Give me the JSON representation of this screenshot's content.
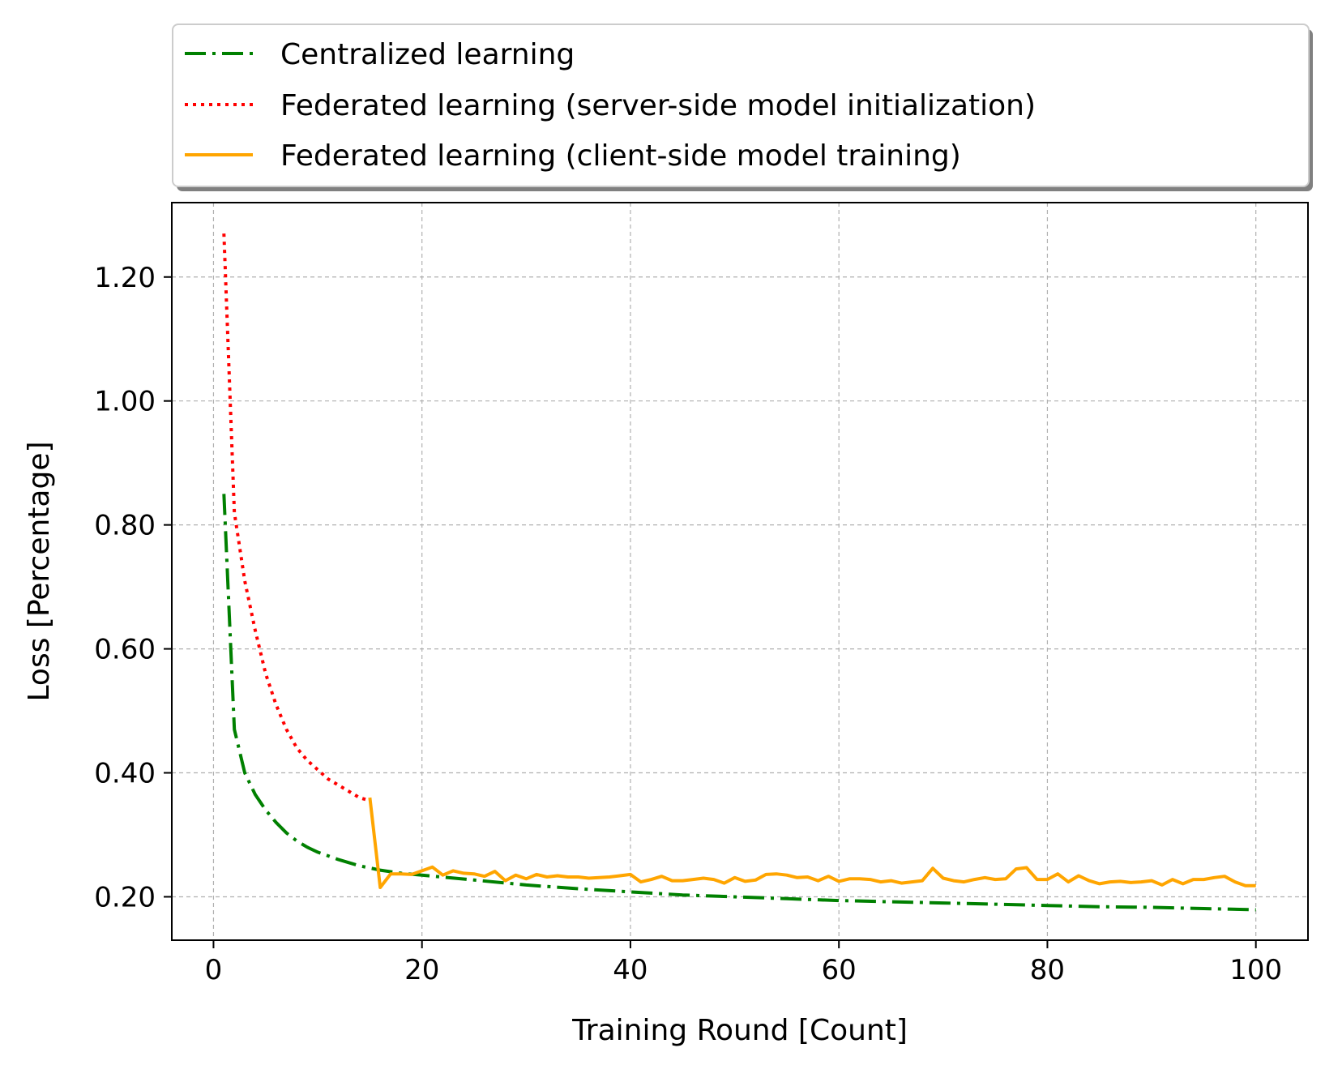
{
  "chart_data": {
    "type": "line",
    "xlabel": "Training Round [Count]",
    "ylabel": "Loss [Percentage]",
    "xlim": [
      -4,
      105
    ],
    "ylim": [
      0.13,
      1.32
    ],
    "xticks": [
      0,
      20,
      40,
      60,
      80,
      100
    ],
    "xtick_labels": [
      "0",
      "20",
      "40",
      "60",
      "80",
      "100"
    ],
    "yticks": [
      0.2,
      0.4,
      0.6,
      0.8,
      1.0,
      1.2
    ],
    "ytick_labels": [
      "0.20",
      "0.40",
      "0.60",
      "0.80",
      "1.00",
      "1.20"
    ],
    "grid": true,
    "legend_position": "top, outside above plot",
    "series": [
      {
        "name": "Centralized learning",
        "color": "#008000",
        "style": "dashdot",
        "x": [
          1,
          2,
          3,
          4,
          5,
          6,
          7,
          8,
          9,
          10,
          12,
          14,
          16,
          18,
          20,
          25,
          30,
          35,
          40,
          45,
          50,
          55,
          60,
          65,
          70,
          75,
          80,
          85,
          90,
          95,
          100
        ],
        "y": [
          0.85,
          0.47,
          0.4,
          0.365,
          0.34,
          0.32,
          0.303,
          0.29,
          0.28,
          0.272,
          0.26,
          0.25,
          0.243,
          0.238,
          0.235,
          0.227,
          0.219,
          0.213,
          0.208,
          0.203,
          0.2,
          0.197,
          0.194,
          0.192,
          0.19,
          0.188,
          0.186,
          0.184,
          0.183,
          0.181,
          0.179
        ]
      },
      {
        "name": "Federated learning (server-side model initialization)",
        "color": "#ff0000",
        "style": "dotted",
        "x": [
          1,
          2,
          3,
          4,
          5,
          6,
          7,
          8,
          9,
          10,
          11,
          12,
          13,
          14,
          15
        ],
        "y": [
          1.27,
          0.82,
          0.71,
          0.63,
          0.56,
          0.51,
          0.47,
          0.44,
          0.42,
          0.405,
          0.39,
          0.38,
          0.37,
          0.36,
          0.355
        ]
      },
      {
        "name": "Federated learning (client-side model training)",
        "color": "#ffa500",
        "style": "solid",
        "x": [
          15,
          16,
          17,
          18,
          19,
          20,
          21,
          22,
          23,
          24,
          25,
          26,
          27,
          28,
          29,
          30,
          31,
          32,
          33,
          34,
          35,
          36,
          37,
          38,
          39,
          40,
          41,
          42,
          43,
          44,
          45,
          46,
          47,
          48,
          49,
          50,
          51,
          52,
          53,
          54,
          55,
          56,
          57,
          58,
          59,
          60,
          61,
          62,
          63,
          64,
          65,
          66,
          67,
          68,
          69,
          70,
          71,
          72,
          73,
          74,
          75,
          76,
          77,
          78,
          79,
          80,
          81,
          82,
          83,
          84,
          85,
          86,
          87,
          88,
          89,
          90,
          91,
          92,
          93,
          94,
          95,
          96,
          97,
          98,
          99,
          100
        ],
        "y": [
          0.36,
          0.215,
          0.237,
          0.237,
          0.236,
          0.242,
          0.248,
          0.235,
          0.242,
          0.238,
          0.237,
          0.233,
          0.241,
          0.226,
          0.235,
          0.229,
          0.236,
          0.232,
          0.234,
          0.232,
          0.232,
          0.23,
          0.231,
          0.232,
          0.234,
          0.236,
          0.224,
          0.228,
          0.233,
          0.226,
          0.226,
          0.228,
          0.23,
          0.228,
          0.222,
          0.231,
          0.225,
          0.227,
          0.236,
          0.237,
          0.235,
          0.231,
          0.232,
          0.226,
          0.233,
          0.225,
          0.229,
          0.229,
          0.228,
          0.224,
          0.226,
          0.222,
          0.224,
          0.226,
          0.246,
          0.23,
          0.226,
          0.224,
          0.228,
          0.231,
          0.228,
          0.229,
          0.245,
          0.247,
          0.228,
          0.228,
          0.237,
          0.224,
          0.234,
          0.226,
          0.221,
          0.224,
          0.225,
          0.223,
          0.224,
          0.226,
          0.219,
          0.228,
          0.221,
          0.228,
          0.228,
          0.231,
          0.233,
          0.224,
          0.218,
          0.218
        ]
      }
    ]
  }
}
